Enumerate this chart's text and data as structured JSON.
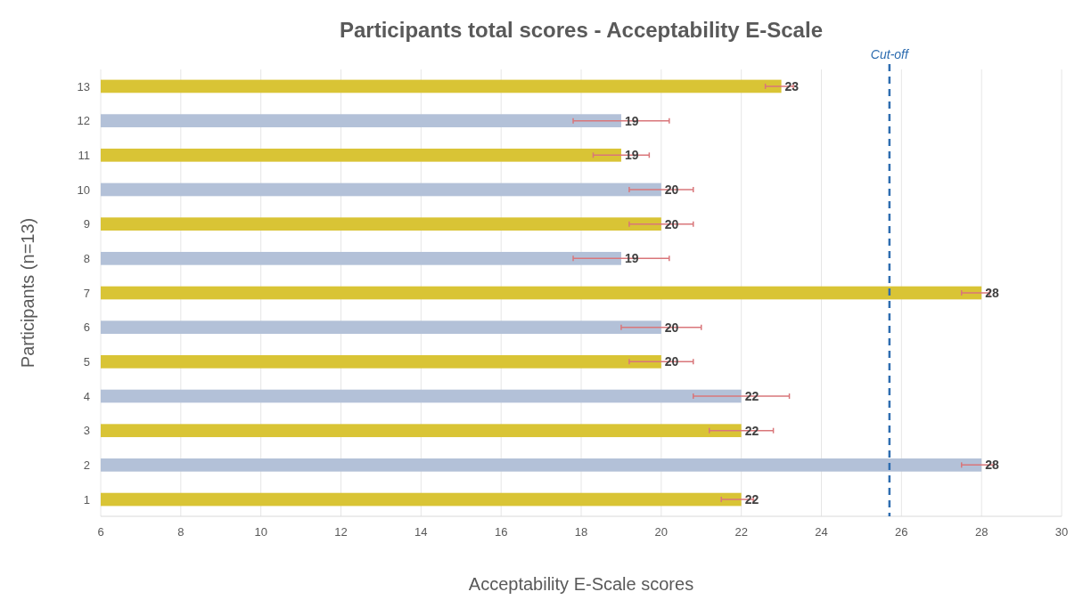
{
  "chart_data": {
    "type": "bar",
    "orientation": "horizontal",
    "title": "Participants total scores - Acceptability E-Scale",
    "xlabel": "Acceptability E-Scale scores",
    "ylabel": "Participants (n=13)",
    "categories": [
      "13",
      "12",
      "11",
      "10",
      "9",
      "8",
      "7",
      "6",
      "5",
      "4",
      "3",
      "2",
      "1"
    ],
    "values": [
      23,
      19,
      19,
      20,
      20,
      19,
      28,
      20,
      20,
      22,
      22,
      28,
      22
    ],
    "colors": [
      "#d9c435",
      "#b3c1d8",
      "#d9c435",
      "#b3c1d8",
      "#d9c435",
      "#b3c1d8",
      "#d9c435",
      "#b3c1d8",
      "#d9c435",
      "#b3c1d8",
      "#d9c435",
      "#b3c1d8",
      "#d9c435"
    ],
    "errors": [
      [
        22.6,
        23.3
      ],
      [
        17.8,
        20.2
      ],
      [
        18.3,
        19.7
      ],
      [
        19.2,
        20.8
      ],
      [
        19.2,
        20.8
      ],
      [
        17.8,
        20.2
      ],
      [
        27.5,
        28.2
      ],
      [
        19.0,
        21.0
      ],
      [
        19.2,
        20.8
      ],
      [
        20.8,
        23.2
      ],
      [
        21.2,
        22.8
      ],
      [
        27.5,
        28.3
      ],
      [
        21.5,
        22.3
      ]
    ],
    "data_labels": true,
    "xlim": [
      6,
      30
    ],
    "xticks": [
      6,
      8,
      10,
      12,
      14,
      16,
      18,
      20,
      22,
      24,
      26,
      28,
      30
    ],
    "grid": "x",
    "ref_lines": [
      {
        "axis": "x",
        "value": 25.7,
        "label": "Cut-off",
        "color": "#2e6db0",
        "line_style": "dashed"
      }
    ]
  }
}
